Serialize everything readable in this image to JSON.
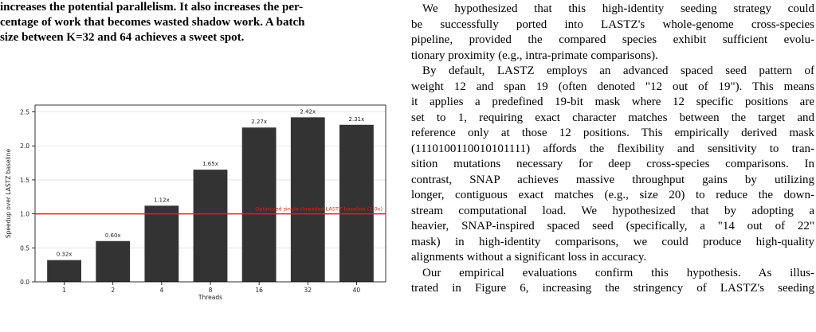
{
  "left_paragraph_lines": [
    "increases the potential parallelism. It also increases the per-",
    "centage of work that becomes wasted shadow work. A batch",
    "size between K=32 and 64 achieves a sweet spot."
  ],
  "right_top_fragment": "",
  "right_paragraphs": [
    {
      "lines": [
        "We hypothesized that this high-identity seeding strategy could",
        "be successfully ported into LASTZ's whole-genome cross-species",
        "pipeline, provided the compared species exhibit sufficient evolu-",
        "tionary proximity (e.g., intra-primate comparisons)."
      ]
    },
    {
      "lines": [
        "By default, LASTZ employs an advanced spaced seed pattern of",
        "weight 12 and span 19 (often denoted \"12 out of 19\"). This means",
        "it applies a predefined 19-bit mask where 12 specific positions are",
        "set to 1, requiring exact character matches between the target and",
        "reference only at those 12 positions. This empirically derived mask",
        "(1110100110010101111) affords the flexibility and sensitivity to tran-",
        "sition mutations necessary for deep cross-species comparisons. In",
        "contrast, SNAP achieves massive throughput gains by utilizing",
        "longer, contiguous exact matches (e.g., size 20) to reduce the down-",
        "stream computational load. We hypothesized that by adopting a",
        "heavier, SNAP-inspired spaced seed (specifically, a \"14 out of 22\"",
        "mask) in high-identity comparisons, we could produce high-quality",
        "alignments without a significant loss in accuracy."
      ]
    },
    {
      "lines": [
        "Our empirical evaluations confirm this hypothesis. As illus-",
        "trated in Figure 6, increasing the stringency of LASTZ's seeding"
      ]
    }
  ],
  "chart_data": {
    "type": "bar",
    "categories": [
      "1",
      "2",
      "4",
      "8",
      "16",
      "32",
      "40"
    ],
    "values": [
      0.32,
      0.6,
      1.12,
      1.65,
      2.27,
      2.42,
      2.31
    ],
    "value_labels": [
      "0.32x",
      "0.60x",
      "1.12x",
      "1.65x",
      "2.27x",
      "2.42x",
      "2.31x"
    ],
    "xlabel": "Threads",
    "ylabel": "Speedup over LASTZ baseline",
    "ylim": [
      0,
      2.6
    ],
    "yticks": [
      "0.0",
      "0.5",
      "1.0",
      "1.5",
      "2.0",
      "2.5"
    ],
    "ytick_values": [
      0,
      0.5,
      1.0,
      1.5,
      2.0,
      2.5
    ],
    "grid": "horizontal",
    "bar_color": "#333333",
    "baseline": {
      "value": 1.0,
      "label": "Optimized single-threaded LASTZ baseline (1.0x)",
      "color": "#e02020"
    }
  }
}
